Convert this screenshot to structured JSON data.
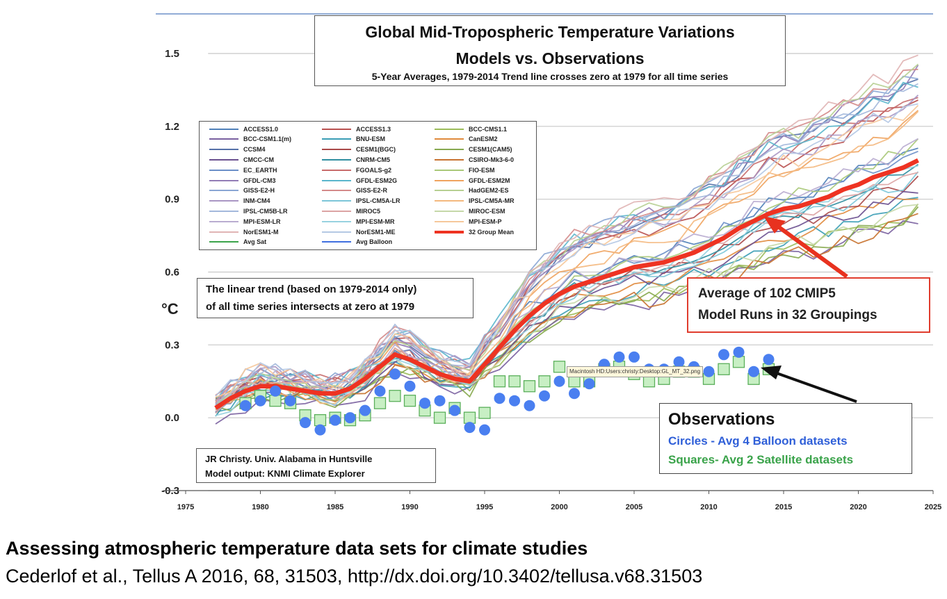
{
  "chart_data": {
    "type": "line",
    "title": "Global Mid-Tropospheric Temperature Variations",
    "title2": "Models vs. Observations",
    "subtitle": "5-Year Averages, 1979-2014 Trend line crosses zero at 1979 for all time series",
    "ylabel": "°C",
    "xlim": [
      1973,
      2025
    ],
    "ylim": [
      -0.3,
      1.5
    ],
    "x_ticks": [
      1975,
      1980,
      1985,
      1990,
      1995,
      2000,
      2005,
      2010,
      2015,
      2020,
      2025
    ],
    "y_ticks": [
      {
        "value": 1.5,
        "label": "1.5"
      },
      {
        "value": 1.2,
        "label": "1.2"
      },
      {
        "value": 0.9,
        "label": "0.9"
      },
      {
        "value": 0.6,
        "label": "0.6"
      },
      {
        "value": 0.3,
        "label": "0.3"
      },
      {
        "value": 0.0,
        "label": "0.0"
      },
      {
        "value": -0.3,
        "label": "-0.3"
      }
    ],
    "grid": true,
    "legend_position": "upper-left",
    "legend": [
      {
        "label": "ACCESS1.0",
        "color": "#4f7fb8"
      },
      {
        "label": "ACCESS1.3",
        "color": "#b8504f"
      },
      {
        "label": "BCC-CMS1.1",
        "color": "#9bbb59"
      },
      {
        "label": "BCC-CSM1.1(m)",
        "color": "#7a60a0"
      },
      {
        "label": "BNU-ESM",
        "color": "#3a9db5"
      },
      {
        "label": "CanESM2",
        "color": "#e08a3c"
      },
      {
        "label": "CCSM4",
        "color": "#5570a8"
      },
      {
        "label": "CESM1(BGC)",
        "color": "#a84848"
      },
      {
        "label": "CESM1(CAM5)",
        "color": "#86a84e"
      },
      {
        "label": "CMCC-CM",
        "color": "#6a4f8f"
      },
      {
        "label": "CNRM-CM5",
        "color": "#2f8ea0"
      },
      {
        "label": "CSIRO-Mk3-6-0",
        "color": "#c8722f"
      },
      {
        "label": "EC_EARTH",
        "color": "#6b8fc8"
      },
      {
        "label": "FGOALS-g2",
        "color": "#c86b6b"
      },
      {
        "label": "FIO-ESM",
        "color": "#a9c878"
      },
      {
        "label": "GFDL-CM3",
        "color": "#927cb6"
      },
      {
        "label": "GFDL-ESM2G",
        "color": "#5ab6cc"
      },
      {
        "label": "GFDL-ESM2M",
        "color": "#f0a35e"
      },
      {
        "label": "GISS-E2-H",
        "color": "#8aa6d4"
      },
      {
        "label": "GISS-E2-R",
        "color": "#d48a8a"
      },
      {
        "label": "HadGEM2-ES",
        "color": "#b7cf92"
      },
      {
        "label": "INM-CM4",
        "color": "#a996c4"
      },
      {
        "label": "IPSL-CM5A-LR",
        "color": "#7cc6d8"
      },
      {
        "label": "IPSL-CM5A-MR",
        "color": "#f4b87e"
      },
      {
        "label": "IPSL-CM5B-LR",
        "color": "#a3b8dc"
      },
      {
        "label": "MIROC5",
        "color": "#dca3a3"
      },
      {
        "label": "MIROC-ESM",
        "color": "#c5d8a8"
      },
      {
        "label": "MPI-ESM-LR",
        "color": "#b9acd0"
      },
      {
        "label": "MPI-ESM-MR",
        "color": "#98d2e0"
      },
      {
        "label": "MPI-ESM-P",
        "color": "#f6c89a"
      },
      {
        "label": "NorESM1-M",
        "color": "#e0b4b4"
      },
      {
        "label": "NorESM1-ME",
        "color": "#b4c8e4"
      },
      {
        "label": "32 Group Mean",
        "color": "#ee3322"
      },
      {
        "label": "Avg Sat",
        "color": "#3aa34a"
      },
      {
        "label": "Avg Balloon",
        "color": "#3f6fe0"
      }
    ],
    "series": [
      {
        "name": "32 Group Mean",
        "color": "#ee3322",
        "x": [
          1977,
          1978,
          1979,
          1980,
          1981,
          1982,
          1983,
          1984,
          1985,
          1986,
          1987,
          1988,
          1989,
          1990,
          1991,
          1992,
          1993,
          1994,
          1995,
          1996,
          1997,
          1998,
          1999,
          2000,
          2001,
          2002,
          2003,
          2004,
          2005,
          2006,
          2007,
          2008,
          2009,
          2010,
          2011,
          2012,
          2013,
          2014,
          2015,
          2016,
          2017,
          2018,
          2019,
          2020,
          2021,
          2022,
          2023,
          2024
        ],
        "y": [
          0.04,
          0.08,
          0.11,
          0.13,
          0.13,
          0.12,
          0.11,
          0.1,
          0.1,
          0.12,
          0.16,
          0.21,
          0.26,
          0.24,
          0.21,
          0.18,
          0.16,
          0.15,
          0.22,
          0.29,
          0.36,
          0.42,
          0.47,
          0.51,
          0.54,
          0.56,
          0.58,
          0.6,
          0.62,
          0.63,
          0.64,
          0.66,
          0.68,
          0.71,
          0.74,
          0.78,
          0.81,
          0.84,
          0.86,
          0.87,
          0.89,
          0.91,
          0.94,
          0.96,
          0.99,
          1.01,
          1.03,
          1.06
        ]
      },
      {
        "name": "Avg Balloon",
        "color": "#3f6fe0",
        "x": [
          1979,
          1980,
          1981,
          1982,
          1983,
          1984,
          1985,
          1986,
          1987,
          1988,
          1989,
          1990,
          1991,
          1992,
          1993,
          1994,
          1995,
          1996,
          1997,
          1998,
          1999,
          2000,
          2001,
          2002,
          2003,
          2004,
          2005,
          2006,
          2007,
          2008,
          2009,
          2010,
          2011,
          2012,
          2013,
          2014
        ],
        "y": [
          0.05,
          0.07,
          0.11,
          0.07,
          -0.02,
          -0.05,
          -0.01,
          0.0,
          0.03,
          0.11,
          0.18,
          0.13,
          0.06,
          0.07,
          0.03,
          -0.04,
          -0.05,
          0.08,
          0.07,
          0.05,
          0.09,
          0.15,
          0.1,
          0.14,
          0.22,
          0.25,
          0.25,
          0.2,
          0.2,
          0.23,
          0.21,
          0.19,
          0.26,
          0.27,
          0.19,
          0.24
        ]
      },
      {
        "name": "Avg Sat",
        "color": "#3aa34a",
        "x": [
          1979,
          1980,
          1981,
          1982,
          1983,
          1984,
          1985,
          1986,
          1987,
          1988,
          1989,
          1990,
          1991,
          1992,
          1993,
          1994,
          1995,
          1996,
          1997,
          1998,
          1999,
          2000,
          2001,
          2002,
          2003,
          2004,
          2005,
          2006,
          2007,
          2008,
          2009,
          2010,
          2011,
          2012,
          2013,
          2014
        ],
        "y": [
          0.06,
          0.09,
          0.07,
          0.06,
          0.01,
          -0.01,
          0.0,
          -0.01,
          0.01,
          0.06,
          0.09,
          0.07,
          0.03,
          0.0,
          0.04,
          0.0,
          0.02,
          0.15,
          0.15,
          0.13,
          0.15,
          0.21,
          0.15,
          0.15,
          0.2,
          0.21,
          0.18,
          0.15,
          0.16,
          0.19,
          0.19,
          0.16,
          0.2,
          0.23,
          0.16,
          0.2
        ]
      }
    ],
    "model_runs_note": "32 individual model grouping curves (colors per legend) spread around the mean, from about -0.05-0.3 before 1995 to about 0.8-1.5 by 2024"
  },
  "annotations": {
    "trend_line1": "The linear trend (based on 1979-2014 only)",
    "trend_line2": "of all time series intersects at zero at 1979",
    "avg_line1": "Average of 102 CMIP5",
    "avg_line2": "Model Runs in 32 Groupings",
    "obs_title": "Observations",
    "obs_circles": "Circles - Avg 4 Balloon datasets",
    "obs_squares": "Squares- Avg 2 Satellite datasets",
    "credit_line1": "JR Christy. Univ. Alabama in Huntsville",
    "credit_line2": "Model output: KNMI Climate Explorer",
    "tooltip": "Macintosh HD:Users:christy:Desktop:GL_MT_32.png"
  },
  "footer": {
    "title": "Assessing atmospheric temperature data sets for climate studies",
    "citation": "Cederlof et al., Tellus A 2016, 68, 31503, http://dx.doi.org/10.3402/tellusa.v68.31503"
  }
}
